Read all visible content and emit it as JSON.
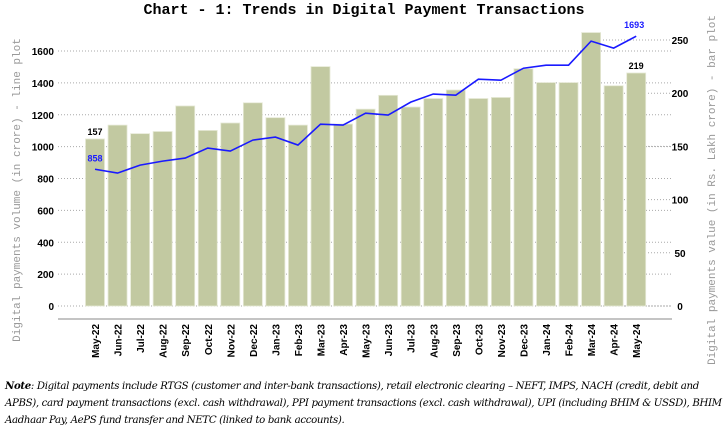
{
  "chart_data": {
    "type": "bar+line",
    "title": "Chart - 1: Trends in Digital Payment Transactions",
    "categories": [
      "May-22",
      "Jun-22",
      "Jul-22",
      "Aug-22",
      "Sep-22",
      "Oct-22",
      "Nov-22",
      "Dec-22",
      "Jan-23",
      "Feb-23",
      "Mar-23",
      "Apr-23",
      "May-23",
      "Jun-23",
      "Jul-23",
      "Aug-23",
      "Sep-23",
      "Oct-23",
      "Nov-23",
      "Dec-23",
      "Jan-24",
      "Feb-24",
      "Mar-24",
      "Apr-24",
      "May-24"
    ],
    "series": [
      {
        "name": "Digital payments value (bar plot)",
        "type": "bar",
        "axis": "right",
        "color": "#c2c9a1",
        "values": [
          157,
          170,
          162,
          164,
          188,
          165,
          172,
          191,
          177,
          170,
          225,
          171,
          185,
          198,
          187,
          195,
          203,
          195,
          196,
          223,
          210,
          210,
          257,
          207,
          219
        ],
        "data_labels": {
          "0": "157",
          "24": "219"
        }
      },
      {
        "name": "Digital payments volume (line plot)",
        "type": "line",
        "axis": "left",
        "color": "#1a1aff",
        "values": [
          858,
          834,
          884,
          909,
          928,
          991,
          972,
          1041,
          1060,
          1010,
          1141,
          1135,
          1210,
          1198,
          1279,
          1330,
          1323,
          1423,
          1417,
          1492,
          1511,
          1511,
          1662,
          1618,
          1693
        ],
        "data_labels": {
          "0": "858",
          "24": "1693"
        }
      }
    ],
    "ylabel_left": "Digital payments volume (in crore) - line plot",
    "ylabel_right": "Digital payments value (in Rs. Lakh crore) - bar plot",
    "ylim_left": [
      0,
      1600
    ],
    "yticks_left": [
      0,
      200,
      400,
      600,
      800,
      1000,
      1200,
      1400,
      1600
    ],
    "ylim_right": [
      0,
      250
    ],
    "yticks_right": [
      0,
      50,
      100,
      150,
      200,
      250
    ],
    "grid": true
  },
  "note": {
    "label": "Note",
    "text": ": Digital payments include RTGS (customer and inter-bank transactions), retail electronic clearing – NEFT, IMPS, NACH (credit, debit and APBS), card payment transactions (excl. cash withdrawal), PPI payment transactions (excl. cash withdrawal), UPI (including BHIM & USSD), BHIM Aadhaar Pay, AePS fund transfer and NETC (linked to bank accounts)."
  }
}
